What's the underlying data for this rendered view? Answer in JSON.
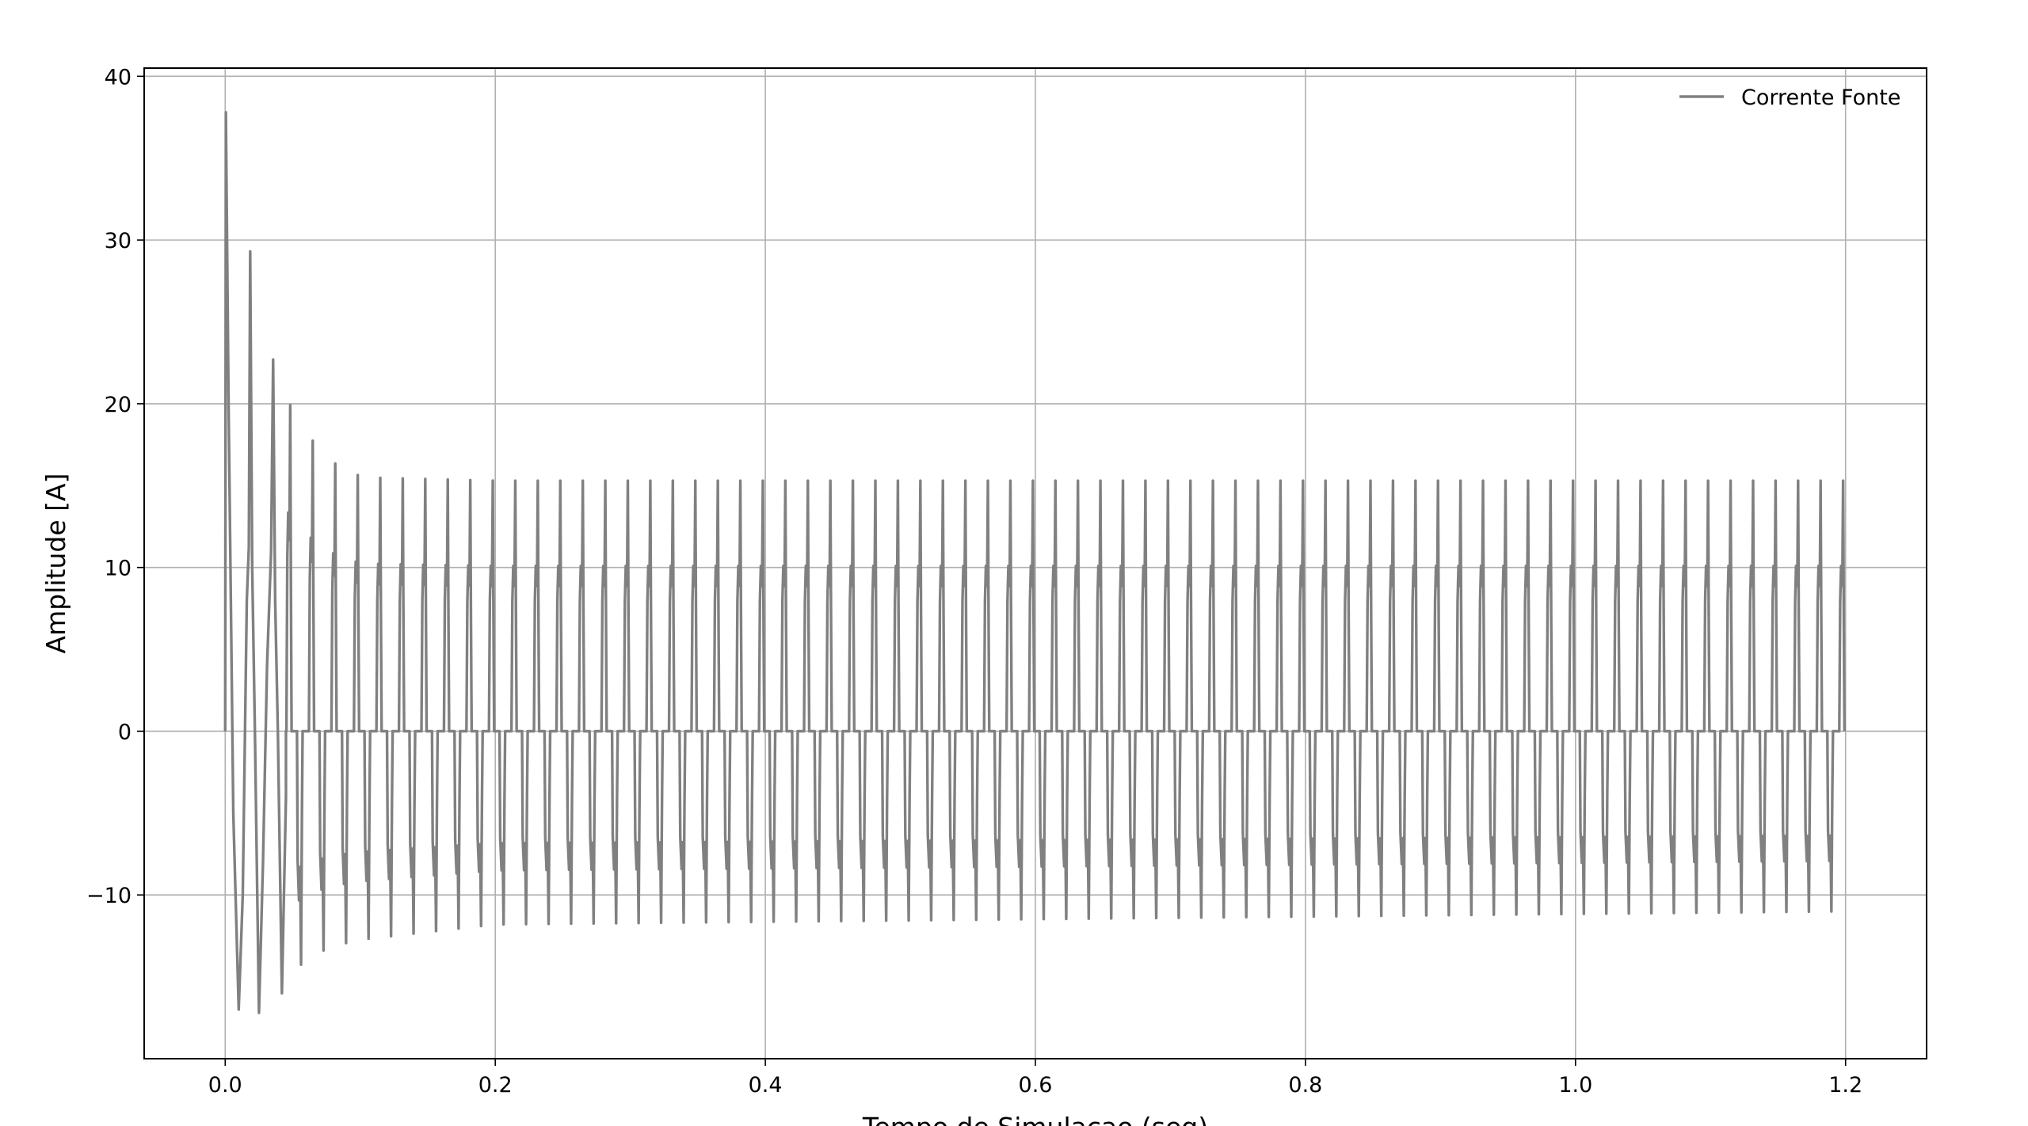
{
  "chart_data": {
    "type": "line",
    "title": "",
    "xlabel": "Tempo de Simulacao (seg)",
    "ylabel": "Amplitude [A]",
    "xlim": [
      -0.06,
      1.26
    ],
    "ylim": [
      -20.0,
      40.5
    ],
    "x_ticks": [
      0.0,
      0.2,
      0.4,
      0.6,
      0.8,
      1.0,
      1.2
    ],
    "x_tick_labels": [
      "0.0",
      "0.2",
      "0.4",
      "0.6",
      "0.8",
      "1.0",
      "1.2"
    ],
    "y_ticks": [
      -10,
      0,
      10,
      20,
      30,
      40
    ],
    "y_tick_labels": [
      "−10",
      "0",
      "10",
      "20",
      "30",
      "40"
    ],
    "grid": true,
    "legend_position": "top-right",
    "line_color": "#808080",
    "series": [
      {
        "name": "Corrente Fonte",
        "waveform": {
          "t_start": 0.0,
          "t_end": 1.2,
          "period": 0.0166667,
          "steady_state_peak": 15.3,
          "steady_state_secondary_peak": 9.8,
          "steady_state_min": -11.0,
          "initial_peak": 37.8,
          "initial_min": -17.2
        },
        "envelope_peaks": [
          {
            "t": 0.0,
            "max": 37.8,
            "min": -17.0
          },
          {
            "t": 0.018,
            "max": 29.3,
            "min": -17.2
          },
          {
            "t": 0.035,
            "max": 22.7,
            "min": -16.0
          },
          {
            "t": 0.052,
            "max": 19.1,
            "min": -14.5
          },
          {
            "t": 0.069,
            "max": 17.3,
            "min": -13.5
          },
          {
            "t": 0.086,
            "max": 16.0,
            "min": -13.0
          },
          {
            "t": 0.103,
            "max": 15.5,
            "min": -12.7
          },
          {
            "t": 0.2,
            "max": 15.3,
            "min": -11.8
          },
          {
            "t": 1.2,
            "max": 15.3,
            "min": -11.0
          }
        ]
      }
    ]
  }
}
